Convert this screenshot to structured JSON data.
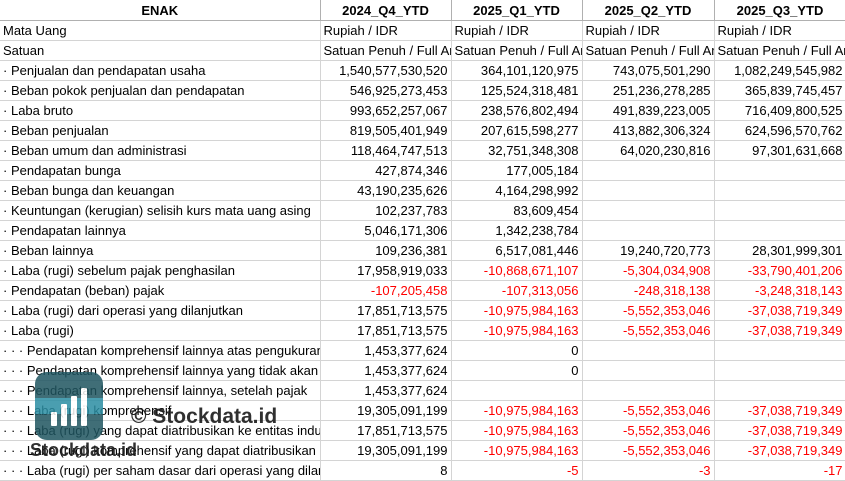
{
  "header": {
    "label_col": "ENAK",
    "periods": [
      "2024_Q4_YTD",
      "2025_Q1_YTD",
      "2025_Q2_YTD",
      "2025_Q3_YTD"
    ]
  },
  "meta_rows": [
    {
      "label": "Mata Uang",
      "values": [
        "Rupiah / IDR",
        "Rupiah / IDR",
        "Rupiah / IDR",
        "Rupiah / IDR"
      ]
    },
    {
      "label": "Satuan",
      "values": [
        "Satuan Penuh / Full Amount",
        "Satuan Penuh / Full Amount",
        "Satuan Penuh / Full Amount",
        "Satuan Penuh / Full Amount"
      ]
    }
  ],
  "rows": [
    {
      "prefix": "·",
      "label": "Penjualan dan pendapatan usaha",
      "values": [
        "1,540,577,530,520",
        "364,101,120,975",
        "743,075,501,290",
        "1,082,249,545,982"
      ]
    },
    {
      "prefix": "·",
      "label": "Beban pokok penjualan dan pendapatan",
      "values": [
        "546,925,273,453",
        "125,524,318,481",
        "251,236,278,285",
        "365,839,745,457"
      ]
    },
    {
      "prefix": "·",
      "label": "Laba bruto",
      "values": [
        "993,652,257,067",
        "238,576,802,494",
        "491,839,223,005",
        "716,409,800,525"
      ]
    },
    {
      "prefix": "·",
      "label": "Beban penjualan",
      "values": [
        "819,505,401,949",
        "207,615,598,277",
        "413,882,306,324",
        "624,596,570,762"
      ]
    },
    {
      "prefix": "·",
      "label": "Beban umum dan administrasi",
      "values": [
        "118,464,747,513",
        "32,751,348,308",
        "64,020,230,816",
        "97,301,631,668"
      ]
    },
    {
      "prefix": "·",
      "label": "Pendapatan bunga",
      "values": [
        "427,874,346",
        "177,005,184",
        "",
        ""
      ]
    },
    {
      "prefix": "·",
      "label": "Beban bunga dan keuangan",
      "values": [
        "43,190,235,626",
        "4,164,298,992",
        "",
        ""
      ]
    },
    {
      "prefix": "·",
      "label": "Keuntungan (kerugian) selisih kurs mata uang asing",
      "values": [
        "102,237,783",
        "83,609,454",
        "",
        ""
      ]
    },
    {
      "prefix": "·",
      "label": "Pendapatan lainnya",
      "values": [
        "5,046,171,306",
        "1,342,238,784",
        "",
        ""
      ]
    },
    {
      "prefix": "·",
      "label": "Beban lainnya",
      "values": [
        "109,236,381",
        "6,517,081,446",
        "19,240,720,773",
        "28,301,999,301"
      ]
    },
    {
      "prefix": "·",
      "label": "Laba (rugi) sebelum pajak penghasilan",
      "values": [
        "17,958,919,033",
        "-10,868,671,107",
        "-5,304,034,908",
        "-33,790,401,206"
      ]
    },
    {
      "prefix": "·",
      "label": "Pendapatan (beban) pajak",
      "values": [
        "-107,205,458",
        "-107,313,056",
        "-248,318,138",
        "-3,248,318,143"
      ]
    },
    {
      "prefix": "·",
      "label": "Laba (rugi) dari operasi yang dilanjutkan",
      "values": [
        "17,851,713,575",
        "-10,975,984,163",
        "-5,552,353,046",
        "-37,038,719,349"
      ]
    },
    {
      "prefix": "·",
      "label": "Laba (rugi)",
      "values": [
        "17,851,713,575",
        "-10,975,984,163",
        "-5,552,353,046",
        "-37,038,719,349"
      ]
    },
    {
      "prefix": "· · ·",
      "label": "Pendapatan komprehensif lainnya atas pengukuran",
      "values": [
        "1,453,377,624",
        "0",
        "",
        ""
      ]
    },
    {
      "prefix": "· · ·",
      "label": "Pendapatan komprehensif lainnya yang tidak akan",
      "values": [
        "1,453,377,624",
        "0",
        "",
        ""
      ]
    },
    {
      "prefix": "· · ·",
      "label": "Pendapatan komprehensif lainnya, setelah pajak",
      "values": [
        "1,453,377,624",
        "",
        "",
        ""
      ]
    },
    {
      "prefix": "· · ·",
      "label": "Laba (rugi) komprehensif",
      "values": [
        "19,305,091,199",
        "-10,975,984,163",
        "-5,552,353,046",
        "-37,038,719,349"
      ]
    },
    {
      "prefix": "· · ·",
      "label": "Laba (rugi) yang dapat diatribusikan ke entitas induk",
      "values": [
        "17,851,713,575",
        "-10,975,984,163",
        "-5,552,353,046",
        "-37,038,719,349"
      ]
    },
    {
      "prefix": "· · ·",
      "label": "Laba (rugi) komprehensif yang dapat diatribusikan",
      "values": [
        "19,305,091,199",
        "-10,975,984,163",
        "-5,552,353,046",
        "-37,038,719,349"
      ]
    },
    {
      "prefix": "· · ·",
      "label": "Laba (rugi) per saham dasar dari operasi yang dilanjutkan",
      "values": [
        "8",
        "-5",
        "-3",
        "-17"
      ]
    }
  ],
  "watermark": {
    "brand_center": "© Stockdata.id",
    "brand_logo_text": "Stockdata.id",
    "logo_color": "#1f5560",
    "logo_band_color": "#2b8ea3"
  },
  "colors": {
    "negative": "#ff0000",
    "grid": "#d4d4d4"
  }
}
